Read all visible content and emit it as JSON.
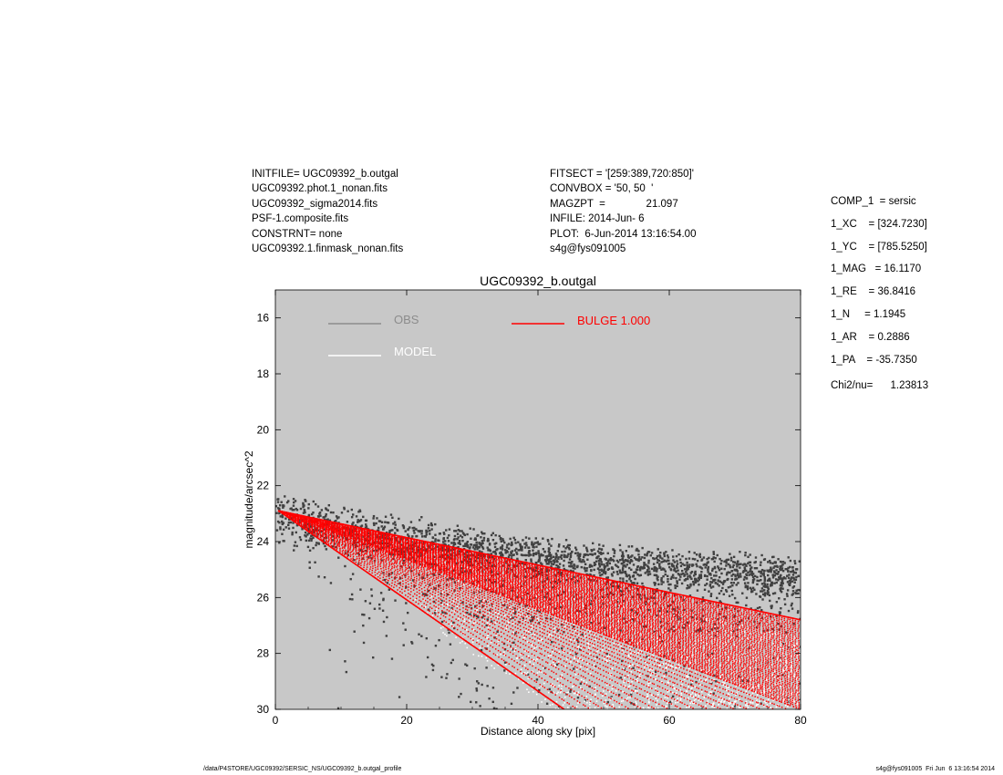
{
  "header_left": [
    "INITFILE= UGC09392_b.outgal",
    "UGC09392.phot.1_nonan.fits",
    "UGC09392_sigma2014.fits",
    "PSF-1.composite.fits",
    "CONSTRNT= none",
    "UGC09392.1.finmask_nonan.fits"
  ],
  "header_mid": [
    "FITSECT = '[259:389,720:850]'",
    "CONVBOX = '50, 50  '",
    "MAGZPT  =              21.097",
    "INFILE: 2014-Jun- 6",
    "PLOT:  6-Jun-2014 13:16:54.00",
    "s4g@fys091005"
  ],
  "header_right": [
    "COMP_1  = sersic",
    "1_XC    = [324.7230]",
    "1_YC    = [785.5250]",
    "1_MAG   = 16.1170",
    "1_RE    = 36.8416",
    "1_N     = 1.1945",
    "1_AR    = 0.2886",
    "1_PA    = -35.7350"
  ],
  "chi2": "Chi2/nu=      1.23813",
  "footer_left": "/data/P4STORE/UGC09392/SERSIC_NS/UGC09392_b.outgal_profile",
  "footer_right": "s4g@fys091005  Fri Jun  6 13:16:54 2014",
  "colors": {
    "plot_background": "#c8c8c8",
    "obs": "#404040",
    "obs_legend": "#8c8c8c",
    "model": "#ffffff",
    "bulge": "#ff0000"
  },
  "chart_data": {
    "type": "scatter",
    "title": "UGC09392_b.outgal",
    "xlabel": "Distance along sky [pix]",
    "ylabel": "magnitude/arcsec^2",
    "xlim": [
      0,
      80
    ],
    "ylim": [
      30,
      15
    ],
    "y_inverted": true,
    "xticks": [
      "0",
      "20",
      "40",
      "60",
      "80"
    ],
    "yticks": [
      "16",
      "18",
      "20",
      "22",
      "24",
      "26",
      "28",
      "30"
    ],
    "legend": [
      {
        "label": "OBS",
        "color": "#8c8c8c"
      },
      {
        "label": "MODEL",
        "color": "#ffffff"
      },
      {
        "label": "BULGE  1.000",
        "color": "#ff0000"
      }
    ],
    "series": [
      {
        "name": "OBS",
        "style": "points",
        "x_range": [
          0,
          80
        ],
        "upper_edge": [
          [
            0,
            22.3
          ],
          [
            20,
            23.2
          ],
          [
            40,
            24.0
          ],
          [
            60,
            24.4
          ],
          [
            80,
            24.6
          ]
        ],
        "dense_band": [
          [
            0,
            23.2
          ],
          [
            20,
            24.0
          ],
          [
            40,
            24.6
          ],
          [
            60,
            25.0
          ],
          [
            80,
            25.3
          ]
        ],
        "lower_edge": [
          [
            0,
            23.8
          ],
          [
            10,
            26.0
          ],
          [
            20,
            28.0
          ],
          [
            30,
            30.0
          ],
          [
            80,
            30.0
          ]
        ]
      },
      {
        "name": "MODEL",
        "style": "points",
        "x_range": [
          20,
          80
        ],
        "y_range": [
          25.5,
          30.0
        ]
      },
      {
        "name": "BULGE  1.000",
        "style": "fan",
        "apex": [
          0.5,
          22.9
        ],
        "upper_edge": [
          [
            0.5,
            22.9
          ],
          [
            80,
            26.8
          ]
        ],
        "lower_edge": [
          [
            0.5,
            22.9
          ],
          [
            44,
            30.0
          ]
        ],
        "end_at_x80": [
          26.8,
          30.0
        ]
      }
    ]
  }
}
